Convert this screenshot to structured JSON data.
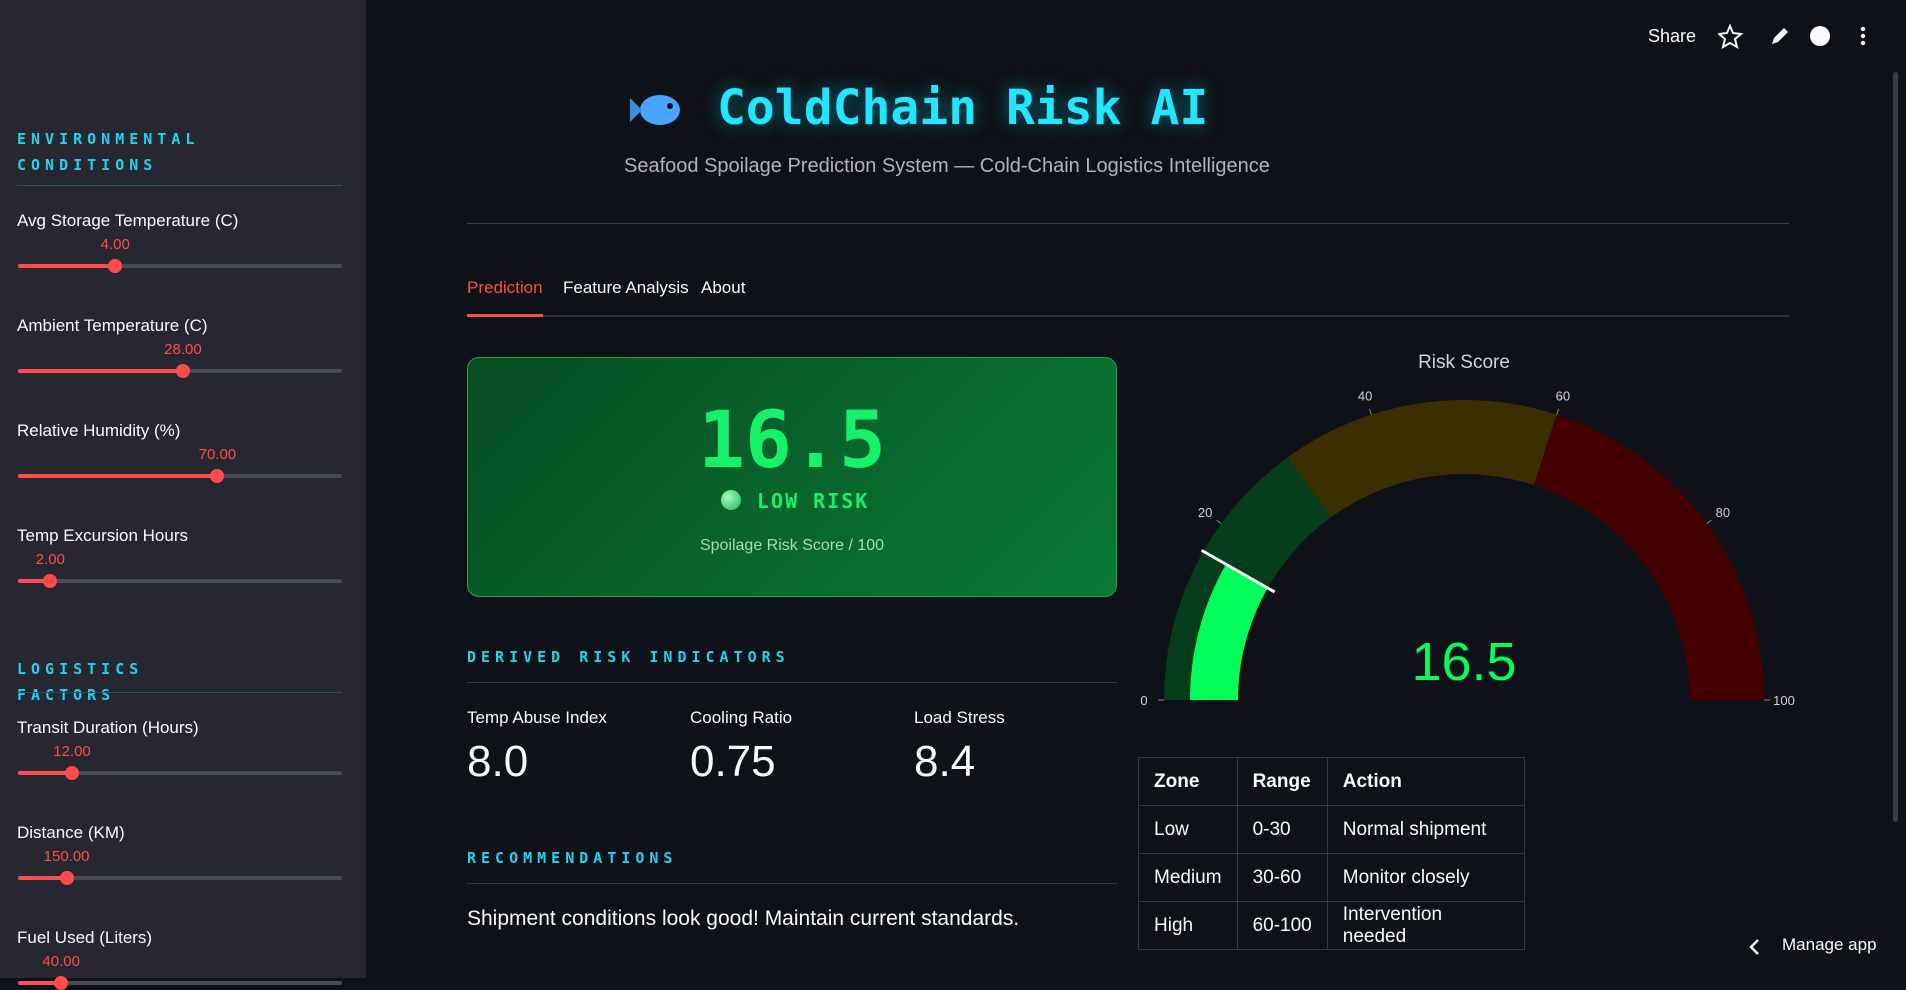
{
  "toolbar": {
    "share": "Share"
  },
  "sidebar": {
    "sections": [
      {
        "title": "ENVIRONMENTAL CONDITIONS",
        "sliders": [
          {
            "label": "Avg Storage Temperature (C)",
            "value": {
              "value": 4,
              "label": "4.00"
            },
            "min": -5,
            "max": 25
          },
          {
            "label": "Ambient Temperature (C)",
            "value": {
              "value": 28,
              "label": "28.00"
            },
            "min": 0,
            "max": 55
          },
          {
            "label": "Relative Humidity (%)",
            "value": {
              "value": 70,
              "label": "70.00"
            },
            "min": 30,
            "max": 95
          },
          {
            "label": "Temp Excursion Hours",
            "value": {
              "value": 2,
              "label": "2.00"
            },
            "min": 0,
            "max": 20
          }
        ]
      },
      {
        "title": "LOGISTICS FACTORS",
        "sliders": [
          {
            "label": "Transit Duration (Hours)",
            "value": {
              "value": 12,
              "label": "12.00"
            },
            "min": 0,
            "max": 72
          },
          {
            "label": "Distance (KM)",
            "value": {
              "value": 150,
              "label": "150.00"
            },
            "min": 0,
            "max": 1000
          },
          {
            "label": "Fuel Used (Liters)",
            "value": {
              "value": 40,
              "label": "40.00"
            },
            "min": 0,
            "max": 300
          }
        ]
      }
    ]
  },
  "header": {
    "title": "ColdChain Risk AI",
    "subtitle": "Seafood Spoilage Prediction System — Cold-Chain Logistics Intelligence"
  },
  "tabs": [
    "Prediction",
    "Feature Analysis",
    "About"
  ],
  "risk_card": {
    "score": 16.5,
    "level": "LOW RISK",
    "caption": "Spoilage Risk Score / 100"
  },
  "indicators": {
    "title": "DERIVED RISK INDICATORS",
    "metrics": [
      {
        "label": "Temp Abuse Index",
        "value": {
          "value": 8,
          "label": "8.0"
        }
      },
      {
        "label": "Cooling Ratio",
        "value": 0.75
      },
      {
        "label": "Load Stress",
        "value": 8.4
      }
    ]
  },
  "recommendations": {
    "title": "RECOMMENDATIONS",
    "text": "Shipment conditions look good! Maintain current standards."
  },
  "gauge": {
    "title": "Risk Score",
    "value": 16.5,
    "range": [
      0,
      100
    ],
    "ticks": [
      0,
      20,
      40,
      60,
      80,
      100
    ],
    "bar_color": "#00ff5a",
    "steps": [
      {
        "range": [
          0,
          30
        ],
        "color": "#063d1b"
      },
      {
        "range": [
          30,
          60
        ],
        "color": "#3b2f00"
      },
      {
        "range": [
          60,
          100
        ],
        "color": "#450000"
      }
    ]
  },
  "zone_table": {
    "columns": [
      "Zone",
      "Range",
      "Action"
    ],
    "rows": [
      [
        "Low",
        "0-30",
        "Normal shipment"
      ],
      [
        "Medium",
        "30-60",
        "Monitor closely"
      ],
      [
        "High",
        "60-100",
        "Intervention needed"
      ]
    ]
  },
  "manage_app": "Manage app"
}
